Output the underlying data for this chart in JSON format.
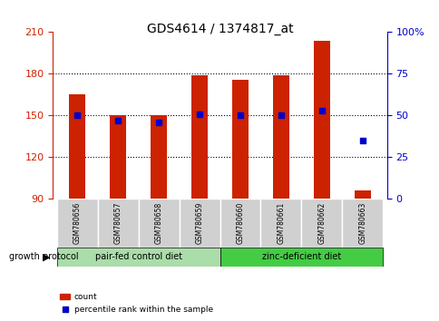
{
  "title": "GDS4614 / 1374817_at",
  "samples": [
    "GSM780656",
    "GSM780657",
    "GSM780658",
    "GSM780659",
    "GSM780660",
    "GSM780661",
    "GSM780662",
    "GSM780663"
  ],
  "counts": [
    165,
    150,
    150,
    179,
    176,
    179,
    204,
    96
  ],
  "percentile_ranks": [
    50,
    47,
    46,
    51,
    50,
    50,
    53,
    35
  ],
  "ylim_left": [
    90,
    210
  ],
  "ylim_right": [
    0,
    100
  ],
  "yticks_left": [
    90,
    120,
    150,
    180,
    210
  ],
  "yticks_right": [
    0,
    25,
    50,
    75,
    100
  ],
  "ytick_labels_right": [
    "0",
    "25",
    "50",
    "75",
    "100%"
  ],
  "hlines": [
    120,
    150,
    180
  ],
  "bar_color": "#cc2200",
  "dot_color": "#0000cc",
  "bar_width": 0.4,
  "group1_label": "pair-fed control diet",
  "group2_label": "zinc-deficient diet",
  "group1_indices": [
    0,
    1,
    2,
    3
  ],
  "group2_indices": [
    4,
    5,
    6,
    7
  ],
  "group1_bg": "#aaddaa",
  "group2_bg": "#44cc44",
  "protocol_label": "growth protocol",
  "legend_count_label": "count",
  "legend_pct_label": "percentile rank within the sample",
  "tick_label_color_left": "#cc2200",
  "tick_label_color_right": "#0000cc",
  "bg_plot": "#ffffff",
  "xlabel_area_bg": "#cccccc",
  "base_value": 90
}
